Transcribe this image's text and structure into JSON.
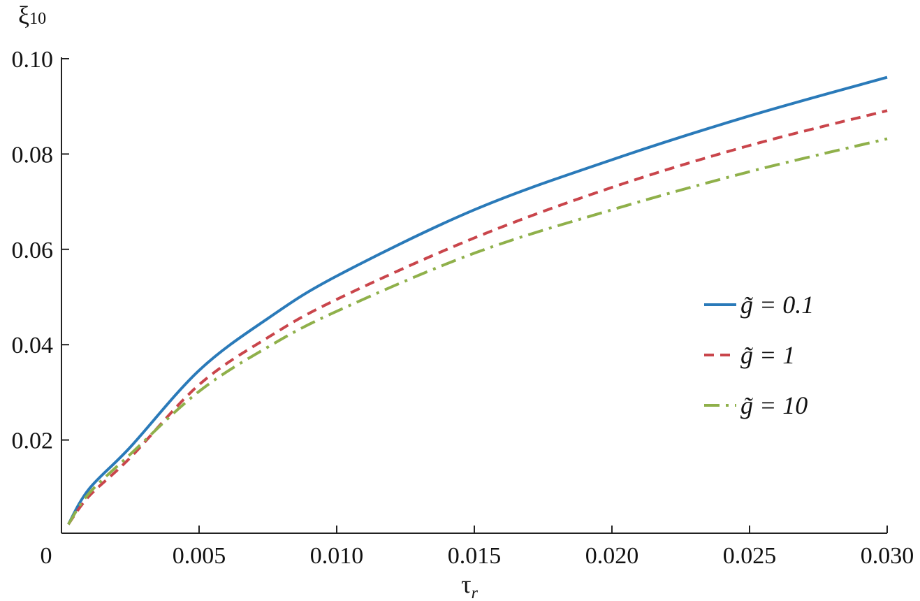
{
  "chart_data": {
    "type": "line",
    "title": "",
    "xlabel": "τ_r",
    "ylabel": "ξ10",
    "xlim": [
      0,
      0.03
    ],
    "ylim": [
      0,
      0.1
    ],
    "xticks": [
      0,
      0.005,
      0.01,
      0.015,
      0.02,
      0.025,
      0.03
    ],
    "xtick_labels": [
      "0",
      "0.005",
      "0.010",
      "0.015",
      "0.020",
      "0.025",
      "0.030"
    ],
    "yticks": [
      0.02,
      0.04,
      0.06,
      0.08,
      0.1
    ],
    "ytick_labels": [
      "0.02",
      "0.04",
      "0.06",
      "0.08",
      "0.10"
    ],
    "grid": false,
    "legend_position": "right",
    "x": [
      0.00025,
      0.001,
      0.0025,
      0.005,
      0.0075,
      0.01,
      0.015,
      0.02,
      0.025,
      0.03
    ],
    "series": [
      {
        "name": "g̃ = 0.1",
        "color": "#2a7ab9",
        "style": "solid",
        "values": [
          0.0023,
          0.0097,
          0.0185,
          0.0346,
          0.0455,
          0.0544,
          0.0683,
          0.0788,
          0.088,
          0.0961
        ]
      },
      {
        "name": "g̃ = 1",
        "color": "#c9454b",
        "style": "dashed",
        "values": [
          0.0023,
          0.0082,
          0.0163,
          0.0316,
          0.0415,
          0.0495,
          0.0624,
          0.073,
          0.0818,
          0.0891
        ]
      },
      {
        "name": "g̃ = 10",
        "color": "#8fb04a",
        "style": "dashdot",
        "values": [
          0.0023,
          0.0088,
          0.017,
          0.0302,
          0.0395,
          0.047,
          0.0592,
          0.0683,
          0.0763,
          0.0832
        ]
      }
    ]
  }
}
